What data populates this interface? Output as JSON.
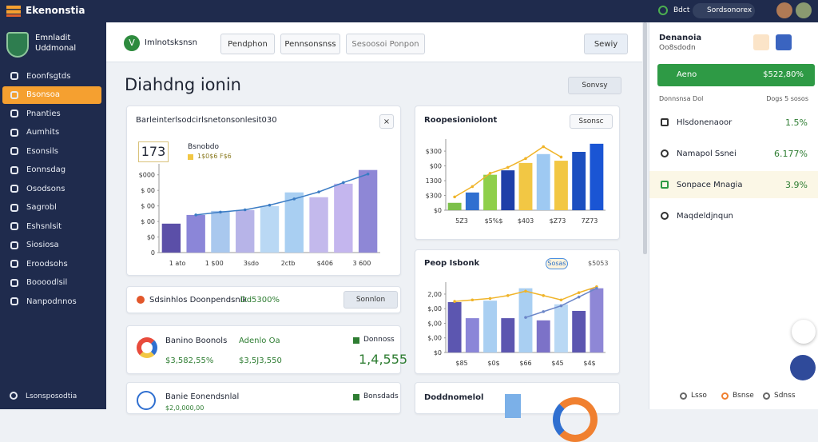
{
  "topbar": {
    "brand": "Ekenonstia",
    "status": "Bdct",
    "search": "Sordsonorex"
  },
  "sidebar": {
    "org": [
      "Emnladit",
      "Uddmonal"
    ],
    "items": [
      "Eoonfsgtds",
      "Bsonsoa",
      "Pnanties",
      "Aumhits",
      "Esonsils",
      "Eonnsdag",
      "Osodsons",
      "Sagrobl",
      "Eshsnlsit",
      "Siosiosa",
      "Eroodsohs",
      "Boooodlsil",
      "Nanpodnnos"
    ],
    "active": 1,
    "footer": "Lsonsposodtia"
  },
  "header": {
    "logo": "V",
    "brand": "Imlnotsksnsn",
    "buttons": [
      "Pendphon",
      "Pennsonsnss",
      "Sesoosoi Ponpon"
    ],
    "search": "Sewiy"
  },
  "page": {
    "title": "Diahdng ionin",
    "action": "Sonvsy"
  },
  "charts": [
    {
      "type": "bar",
      "title": "Barleinterlsodcirlsnetonsonlesit030",
      "kpi": "173",
      "legend": [
        "Bsnobdo",
        "1$0$6 F$6"
      ],
      "ylim": [
        0,
        5.5
      ],
      "yticks": [
        {
          "value": 0,
          "label": "0"
        },
        {
          "value": 1,
          "label": "$0"
        },
        {
          "value": 2,
          "label": "$ 00"
        },
        {
          "value": 3,
          "label": "$ 00"
        },
        {
          "value": 4,
          "label": "$ 00"
        },
        {
          "value": 5,
          "label": "$000"
        }
      ],
      "xlabels": [
        "1 ato",
        "1 $00",
        "3sdo",
        "2ctb",
        "$406",
        "3 600"
      ],
      "values": [
        1.86,
        2.42,
        2.68,
        2.73,
        2.99,
        3.87,
        3.56,
        4.43,
        5.31
      ],
      "colors": [
        "#5b4fa8",
        "#8b86d8",
        "#a9c8ee",
        "#b7b4e8",
        "#b9d8f4",
        "#a9cff2",
        "#c3b9ec",
        "#c4b6ee",
        "#8e87d6"
      ],
      "lines": [
        {
          "color": "#3b7cc4",
          "values": [
            null,
            2.42,
            2.6,
            2.75,
            3.05,
            3.45,
            3.9,
            4.5,
            5.05
          ]
        }
      ]
    },
    {
      "type": "bar",
      "title": "Roopesioniolont",
      "badge": "Ssonsc",
      "ylim": [
        0,
        4.6
      ],
      "yticks": [
        {
          "value": 0,
          "label": "$0"
        },
        {
          "value": 1,
          "label": "$300"
        },
        {
          "value": 2,
          "label": "1300"
        },
        {
          "value": 3,
          "label": "$00"
        },
        {
          "value": 4,
          "label": "$300"
        }
      ],
      "xlabels": [
        "5Z3",
        "$5%$",
        "$403",
        "$Z73",
        "7Z73"
      ],
      "values": [
        0.5,
        1.2,
        2.4,
        2.7,
        3.2,
        3.8,
        3.35,
        3.95,
        4.5
      ],
      "colors": [
        "#7cc04a",
        "#2f6fd0",
        "#8fcf4a",
        "#1f3fa8",
        "#f2c744",
        "#9ec9f2",
        "#f2c744",
        "#1c4fc0",
        "#1a55d4"
      ],
      "lines": [
        {
          "color": "#f0b429",
          "values": [
            0.9,
            1.6,
            2.5,
            2.9,
            3.5,
            4.3,
            3.6,
            null,
            null
          ]
        }
      ]
    },
    {
      "type": "bar",
      "title": "Peop Isbonk",
      "badge": "Sosas",
      "badge_value": "$5053",
      "ylim": [
        0,
        4.6
      ],
      "yticks": [
        {
          "value": 0,
          "label": "$0"
        },
        {
          "value": 1,
          "label": "$,00"
        },
        {
          "value": 2,
          "label": "$,00"
        },
        {
          "value": 3,
          "label": "$,00"
        },
        {
          "value": 4,
          "label": "2,00"
        }
      ],
      "xlabels": [
        "$85",
        "$0$",
        "$66",
        "$45",
        "$4$"
      ],
      "values": [
        3.45,
        2.35,
        3.55,
        2.35,
        4.4,
        2.2,
        3.3,
        2.85,
        4.4
      ],
      "colors": [
        "#5c56b0",
        "#8b86d8",
        "#a9cff2",
        "#5c56b0",
        "#a9cff2",
        "#7c72c8",
        "#b9d8f4",
        "#5c56b0",
        "#8e87d6"
      ],
      "lines": [
        {
          "color": "#f0b429",
          "values": [
            3.5,
            3.6,
            3.7,
            3.9,
            4.2,
            3.9,
            3.6,
            4.1,
            4.5
          ]
        },
        {
          "color": "#6b86c8",
          "values": [
            null,
            null,
            null,
            null,
            2.4,
            2.8,
            3.2,
            3.8,
            4.4
          ]
        }
      ]
    }
  ],
  "partial_card": {
    "title": "Doddnomelol"
  },
  "strip": {
    "label": "Sdsinhlos Doonpendsnik",
    "value": "Dd5300%",
    "button": "Sonnlon"
  },
  "card_a": {
    "name": "Banino Boonols",
    "amount": "$3,582,55%",
    "label2": "Adenlo Oa",
    "amount2": "$3,5J3,550",
    "label3": "Donnoss",
    "total": "1,4,555"
  },
  "card_b": {
    "name": "Banie Eonendsnlal",
    "amount": "$2,0,000,00",
    "label3": "Bonsdads"
  },
  "panel": {
    "title": "Denanoia",
    "subtitle": "Oo8sdodn",
    "highlight": {
      "label": "Aeno",
      "value": "$522,80%"
    },
    "cols": [
      "Donnsnsa Dol",
      "Dogs 5 sosos"
    ],
    "rows": [
      {
        "label": "Hlsdonenaoor",
        "value": "1.5%"
      },
      {
        "label": "Namapol Ssnei",
        "value": "6.177%"
      },
      {
        "label": "Sonpace Mnagia",
        "value": "3.9%"
      },
      {
        "label": "Maqdeldjnqun"
      }
    ],
    "footer": [
      "Lsso",
      "Bsnse",
      "Sdnss"
    ]
  }
}
